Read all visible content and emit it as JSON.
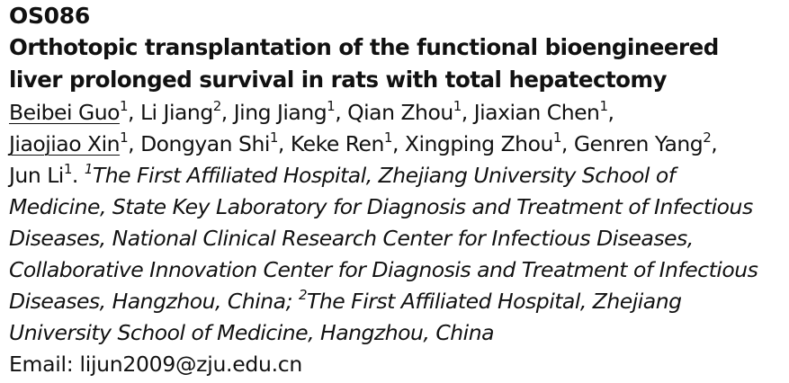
{
  "abstract": {
    "code": "OS086",
    "title": "Orthotopic transplantation of the functional bioengineered liver prolonged survival in rats with total hepatectomy",
    "authors": [
      {
        "name": "Beibei Guo",
        "sup": "1",
        "sep": ", "
      },
      {
        "name": "Li Jiang",
        "sup": "2",
        "sep": ", "
      },
      {
        "name": "Jing Jiang",
        "sup": "1",
        "sep": ", "
      },
      {
        "name": "Qian Zhou",
        "sup": "1",
        "sep": ", "
      },
      {
        "name": "Jiaxian Chen",
        "sup": "1",
        "sep": ", "
      },
      {
        "name": "Jiaojiao Xin",
        "sup": "1",
        "sep": ", "
      },
      {
        "name": "Dongyan Shi",
        "sup": "1",
        "sep": ", "
      },
      {
        "name": "Keke Ren",
        "sup": "1",
        "sep": ", "
      },
      {
        "name": "Xingping Zhou",
        "sup": "1",
        "sep": ", "
      },
      {
        "name": "Genren Yang",
        "sup": "2",
        "sep": ", "
      },
      {
        "name": "Jun Li",
        "sup": "1",
        "sep": ". "
      }
    ],
    "affiliations": [
      {
        "sup": "1",
        "text": "The First Affiliated Hospital, Zhejiang University School of Medicine, State Key Laboratory for Diagnosis and Treatment of Infectious Diseases, National Clinical Research Center for Infectious Diseases, Collaborative Innovation Center for Diagnosis and Treatment of Infectious Diseases, Hangzhou, China",
        "sep": "; "
      },
      {
        "sup": "2",
        "text": "The First Affiliated Hospital, Zhejiang University School of Medicine, Hangzhou, China",
        "sep": ""
      }
    ],
    "email_label": "Email:",
    "email": "lijun2009@zju.edu.cn"
  }
}
